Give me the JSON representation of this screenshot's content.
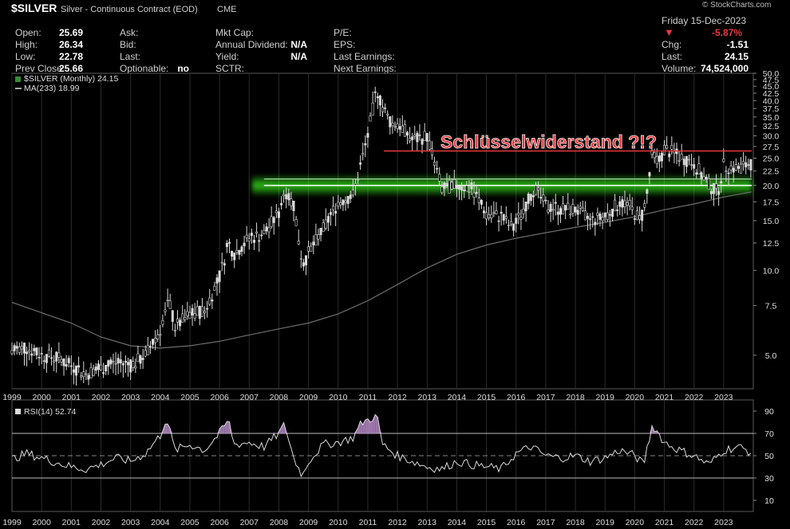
{
  "header": {
    "symbol": "$SILVER",
    "name": "Silver - Continuous Contract (EOD)",
    "exchange": "CME",
    "stockcharts": "© StockCharts.com",
    "date": "Friday 15-Dec-2023",
    "change_pct": "-5.87%",
    "col1": [
      {
        "label": "Open:",
        "value": "25.69"
      },
      {
        "label": "High:",
        "value": "26.34"
      },
      {
        "label": "Low:",
        "value": "22.78"
      },
      {
        "label": "Prev Close:",
        "value": "25.66"
      }
    ],
    "col2": [
      {
        "label": "Ask:",
        "value": ""
      },
      {
        "label": "Bid:",
        "value": ""
      },
      {
        "label": "Last:",
        "value": ""
      },
      {
        "label": "Optionable:",
        "value": "no"
      }
    ],
    "col3": [
      {
        "label": "Mkt Cap:",
        "value": ""
      },
      {
        "label": "Annual Dividend:",
        "value": "N/A"
      },
      {
        "label": "Yield:",
        "value": "N/A"
      },
      {
        "label": "SCTR:",
        "value": ""
      }
    ],
    "col4": [
      {
        "label": "P/E:",
        "value": ""
      },
      {
        "label": "EPS:",
        "value": ""
      },
      {
        "label": "Last Earnings:",
        "value": ""
      },
      {
        "label": "Next Earnings:",
        "value": ""
      }
    ],
    "col5": [
      {
        "label": "Chg:",
        "value": "-1.51"
      },
      {
        "label": "Last:",
        "value": "24.15"
      },
      {
        "label": "Volume:",
        "value": "74,524,000"
      }
    ],
    "legend_price": "$SILVER (Monthly) 24.15",
    "legend_ma": "MA(233) 18.99",
    "legend_rsi": "RSI(14) 52.74"
  },
  "colors": {
    "background": "#000000",
    "price_bars": "#d9d9d9",
    "ma_line": "#6e6e6e",
    "resistance": "#e8393c",
    "support_band": "#3cff1e",
    "rsi_line": "#d9d9d9",
    "rsi_fill": "#b98bc9",
    "down_arrow": "#e8393c"
  },
  "chart_data": [
    {
      "type": "candlestick",
      "title": "$SILVER (Monthly) 24.15",
      "y_scale": "log",
      "ylim": [
        3.8,
        50
      ],
      "xlim": [
        1999.0,
        2024.0
      ],
      "y_ticks": [
        "50.0",
        "47.5",
        "45.0",
        "42.5",
        "40.0",
        "37.5",
        "35.0",
        "32.5",
        "30.0",
        "27.5",
        "25.0",
        "22.5",
        "20.0",
        "17.5",
        "15.0",
        "12.5",
        "10.0",
        "7.5",
        "5.0"
      ],
      "x_ticks": [
        "1999",
        "2000",
        "2001",
        "2002",
        "2003",
        "2004",
        "2005",
        "2006",
        "2007",
        "2008",
        "2009",
        "2010",
        "2011",
        "2012",
        "2013",
        "2014",
        "2015",
        "2016",
        "2017",
        "2018",
        "2019",
        "2020",
        "2021",
        "2022",
        "2023"
      ],
      "price_series": {
        "name": "$SILVER (Monthly) 24.15",
        "x": [
          1999.0,
          1999.5,
          2000.0,
          2000.5,
          2001.0,
          2001.5,
          2002.0,
          2002.5,
          2003.0,
          2003.5,
          2004.0,
          2004.3,
          2004.5,
          2005.0,
          2005.5,
          2006.0,
          2006.3,
          2006.5,
          2007.0,
          2007.5,
          2008.0,
          2008.2,
          2008.5,
          2008.8,
          2009.0,
          2009.5,
          2010.0,
          2010.5,
          2010.8,
          2011.0,
          2011.3,
          2011.5,
          2011.8,
          2012.0,
          2012.5,
          2013.0,
          2013.3,
          2013.5,
          2014.0,
          2014.5,
          2015.0,
          2015.5,
          2015.9,
          2016.3,
          2016.6,
          2017.0,
          2017.5,
          2018.0,
          2018.5,
          2019.0,
          2019.5,
          2019.8,
          2020.2,
          2020.4,
          2020.6,
          2020.8,
          2021.0,
          2021.5,
          2022.0,
          2022.5,
          2022.8,
          2023.0,
          2023.5,
          2023.95
        ],
        "y": [
          5.2,
          5.3,
          5.0,
          4.9,
          4.6,
          4.3,
          4.5,
          4.7,
          4.6,
          5.0,
          6.2,
          7.8,
          6.3,
          7.0,
          7.2,
          9.5,
          12.5,
          11.5,
          13.0,
          13.5,
          16.0,
          19.5,
          17.0,
          10.5,
          11.5,
          14.0,
          17.5,
          18.5,
          24.5,
          30.0,
          44.0,
          38.0,
          33.0,
          33.5,
          29.0,
          30.0,
          23.0,
          19.5,
          20.0,
          19.5,
          16.0,
          15.5,
          14.0,
          17.0,
          19.5,
          17.0,
          16.5,
          16.5,
          15.0,
          15.5,
          17.5,
          17.0,
          15.0,
          18.0,
          26.0,
          24.0,
          27.0,
          25.5,
          24.0,
          20.0,
          19.0,
          23.5,
          23.0,
          24.15
        ]
      },
      "ma_series": {
        "name": "MA(233) 18.99",
        "x": [
          1999.0,
          2001.0,
          2002.0,
          2003.0,
          2004.0,
          2005.0,
          2006.0,
          2007.0,
          2008.0,
          2009.0,
          2010.0,
          2011.0,
          2012.0,
          2013.0,
          2014.0,
          2015.0,
          2016.0,
          2017.0,
          2018.0,
          2019.0,
          2020.0,
          2021.0,
          2022.0,
          2023.0,
          2023.95
        ],
        "y": [
          7.7,
          6.5,
          5.8,
          5.4,
          5.3,
          5.4,
          5.6,
          5.9,
          6.2,
          6.5,
          7.0,
          7.8,
          8.9,
          10.2,
          11.4,
          12.3,
          13.0,
          13.6,
          14.2,
          14.8,
          15.5,
          16.4,
          17.2,
          18.2,
          18.99
        ]
      },
      "annotations": [
        {
          "text": "Schlüsselwiderstand ?!?",
          "type": "resistance",
          "y": 26.5,
          "x_range": [
            2011.0,
            2023.95
          ]
        },
        {
          "type": "support_band",
          "y": 20.0,
          "x_range": [
            2007.5,
            2023.95
          ]
        }
      ]
    },
    {
      "type": "line",
      "title": "RSI(14) 52.74",
      "ylim": [
        0,
        100
      ],
      "xlim": [
        1999.0,
        2024.0
      ],
      "y_ticks": [
        "90",
        "70",
        "50",
        "30",
        "10"
      ],
      "reference_lines": [
        70,
        50,
        30
      ],
      "series": [
        {
          "name": "RSI(14) 52.74",
          "x": [
            1999.0,
            1999.5,
            2000.0,
            2000.5,
            2001.0,
            2001.5,
            2002.0,
            2002.5,
            2003.0,
            2003.5,
            2004.0,
            2004.2,
            2004.5,
            2005.0,
            2005.5,
            2006.0,
            2006.3,
            2006.5,
            2007.0,
            2007.5,
            2008.0,
            2008.2,
            2008.5,
            2008.8,
            2009.0,
            2009.5,
            2010.0,
            2010.5,
            2010.8,
            2011.0,
            2011.3,
            2011.5,
            2012.0,
            2012.5,
            2013.0,
            2013.5,
            2014.0,
            2014.5,
            2015.0,
            2015.5,
            2016.0,
            2016.5,
            2017.0,
            2017.5,
            2018.0,
            2018.5,
            2019.0,
            2019.5,
            2020.0,
            2020.3,
            2020.6,
            2021.0,
            2021.5,
            2022.0,
            2022.5,
            2023.0,
            2023.5,
            2023.95
          ],
          "y": [
            47,
            52,
            48,
            44,
            40,
            38,
            42,
            48,
            45,
            52,
            68,
            84,
            55,
            60,
            55,
            70,
            82,
            60,
            62,
            58,
            70,
            78,
            48,
            32,
            45,
            60,
            62,
            66,
            80,
            82,
            86,
            60,
            50,
            45,
            40,
            38,
            45,
            42,
            40,
            38,
            52,
            58,
            50,
            48,
            50,
            45,
            48,
            55,
            50,
            42,
            78,
            62,
            55,
            50,
            42,
            55,
            58,
            52.74
          ]
        }
      ]
    }
  ],
  "x_axis_years": [
    "1999",
    "2000",
    "2001",
    "2002",
    "2003",
    "2004",
    "2005",
    "2006",
    "2007",
    "2008",
    "2009",
    "2010",
    "2011",
    "2012",
    "2013",
    "2014",
    "2015",
    "2016",
    "2017",
    "2018",
    "2019",
    "2020",
    "2021",
    "2022",
    "2023"
  ]
}
